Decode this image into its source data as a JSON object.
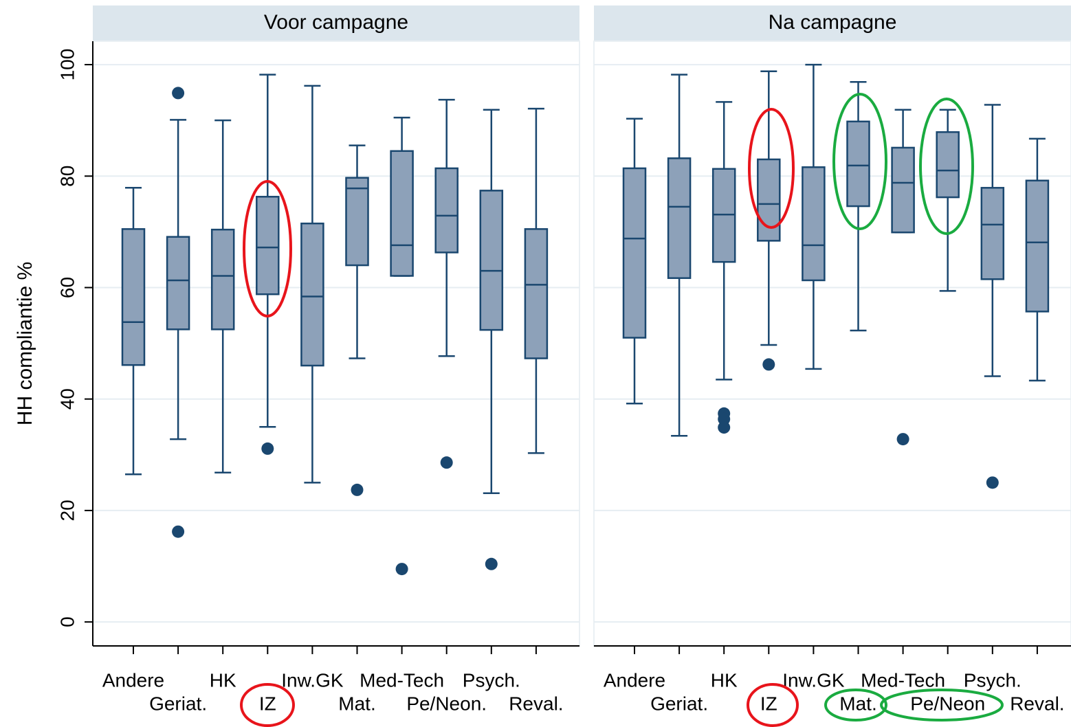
{
  "chart_data": [
    {
      "type": "box",
      "title": "Voor campagne",
      "y_label": "HH compliantie %",
      "categories": [
        "Andere",
        "Geriat.",
        "HK",
        "IZ",
        "Inw.GK",
        "Mat.",
        "Med-Tech",
        "Pe/Neon.",
        "Psych.",
        "Reval."
      ],
      "box_color": "#8da1b9",
      "line_color": "#1a476f",
      "ylim": [
        -4.3,
        104.2
      ],
      "yticks": [
        0,
        20,
        40,
        60,
        80,
        100
      ],
      "grid": true,
      "boxes": [
        {
          "low": 26.5,
          "q1": 46.1,
          "median": 53.8,
          "q3": 70.5,
          "high": 77.9,
          "outliers": []
        },
        {
          "low": 32.8,
          "q1": 52.5,
          "median": 61.3,
          "q3": 69.1,
          "high": 90.1,
          "outliers": [
            94.9,
            16.2
          ]
        },
        {
          "low": 26.8,
          "q1": 52.5,
          "median": 62.1,
          "q3": 70.4,
          "high": 90.0,
          "outliers": []
        },
        {
          "low": 35.0,
          "q1": 58.8,
          "median": 67.2,
          "q3": 76.3,
          "high": 98.2,
          "outliers": [
            31.1
          ]
        },
        {
          "low": 25.0,
          "q1": 46.0,
          "median": 58.4,
          "q3": 71.5,
          "high": 96.2,
          "outliers": []
        },
        {
          "low": 47.3,
          "q1": 64.0,
          "median": 77.8,
          "q3": 79.7,
          "high": 85.5,
          "outliers": [
            23.7
          ]
        },
        {
          "low": 62.1,
          "q1": 62.1,
          "median": 67.6,
          "q3": 84.5,
          "high": 90.5,
          "outliers": [
            9.5
          ]
        },
        {
          "low": 47.7,
          "q1": 66.3,
          "median": 72.9,
          "q3": 81.4,
          "high": 93.7,
          "outliers": [
            28.6
          ]
        },
        {
          "low": 23.1,
          "q1": 52.4,
          "median": 63.0,
          "q3": 77.4,
          "high": 91.9,
          "outliers": [
            10.4
          ]
        },
        {
          "low": 30.3,
          "q1": 47.3,
          "median": 60.5,
          "q3": 70.5,
          "high": 92.1,
          "outliers": []
        }
      ]
    },
    {
      "type": "box",
      "title": "Na campagne",
      "categories": [
        "Andere",
        "Geriat.",
        "HK",
        "IZ",
        "Inw.GK",
        "Mat.",
        "Med-Tech",
        "Pe/Neon",
        "Psych.",
        "Reval."
      ],
      "box_color": "#8da1b9",
      "line_color": "#1a476f",
      "ylim": [
        -4.3,
        104.2
      ],
      "yticks": [
        0,
        20,
        40,
        60,
        80,
        100
      ],
      "grid": true,
      "boxes": [
        {
          "low": 39.2,
          "q1": 51.0,
          "median": 68.8,
          "q3": 81.4,
          "high": 90.3,
          "outliers": []
        },
        {
          "low": 33.4,
          "q1": 61.7,
          "median": 74.5,
          "q3": 83.2,
          "high": 98.2,
          "outliers": []
        },
        {
          "low": 43.5,
          "q1": 64.6,
          "median": 73.1,
          "q3": 81.3,
          "high": 93.3,
          "outliers": [
            37.4,
            36.4,
            34.9
          ]
        },
        {
          "low": 49.7,
          "q1": 68.4,
          "median": 75.0,
          "q3": 83.0,
          "high": 98.8,
          "outliers": [
            46.2
          ]
        },
        {
          "low": 45.4,
          "q1": 61.3,
          "median": 67.6,
          "q3": 81.6,
          "high": 100,
          "outliers": []
        },
        {
          "low": 52.3,
          "q1": 74.6,
          "median": 81.9,
          "q3": 89.8,
          "high": 96.9,
          "outliers": []
        },
        {
          "low": 69.9,
          "q1": 69.9,
          "median": 78.8,
          "q3": 85.1,
          "high": 91.9,
          "outliers": [
            32.8
          ]
        },
        {
          "low": 59.4,
          "q1": 76.2,
          "median": 81.0,
          "q3": 87.9,
          "high": 91.9,
          "outliers": []
        },
        {
          "low": 44.1,
          "q1": 61.5,
          "median": 71.3,
          "q3": 77.9,
          "high": 92.8,
          "outliers": [
            25.0
          ]
        },
        {
          "low": 43.3,
          "q1": 55.7,
          "median": 68.1,
          "q3": 79.2,
          "high": 86.7,
          "outliers": []
        }
      ]
    }
  ]
}
